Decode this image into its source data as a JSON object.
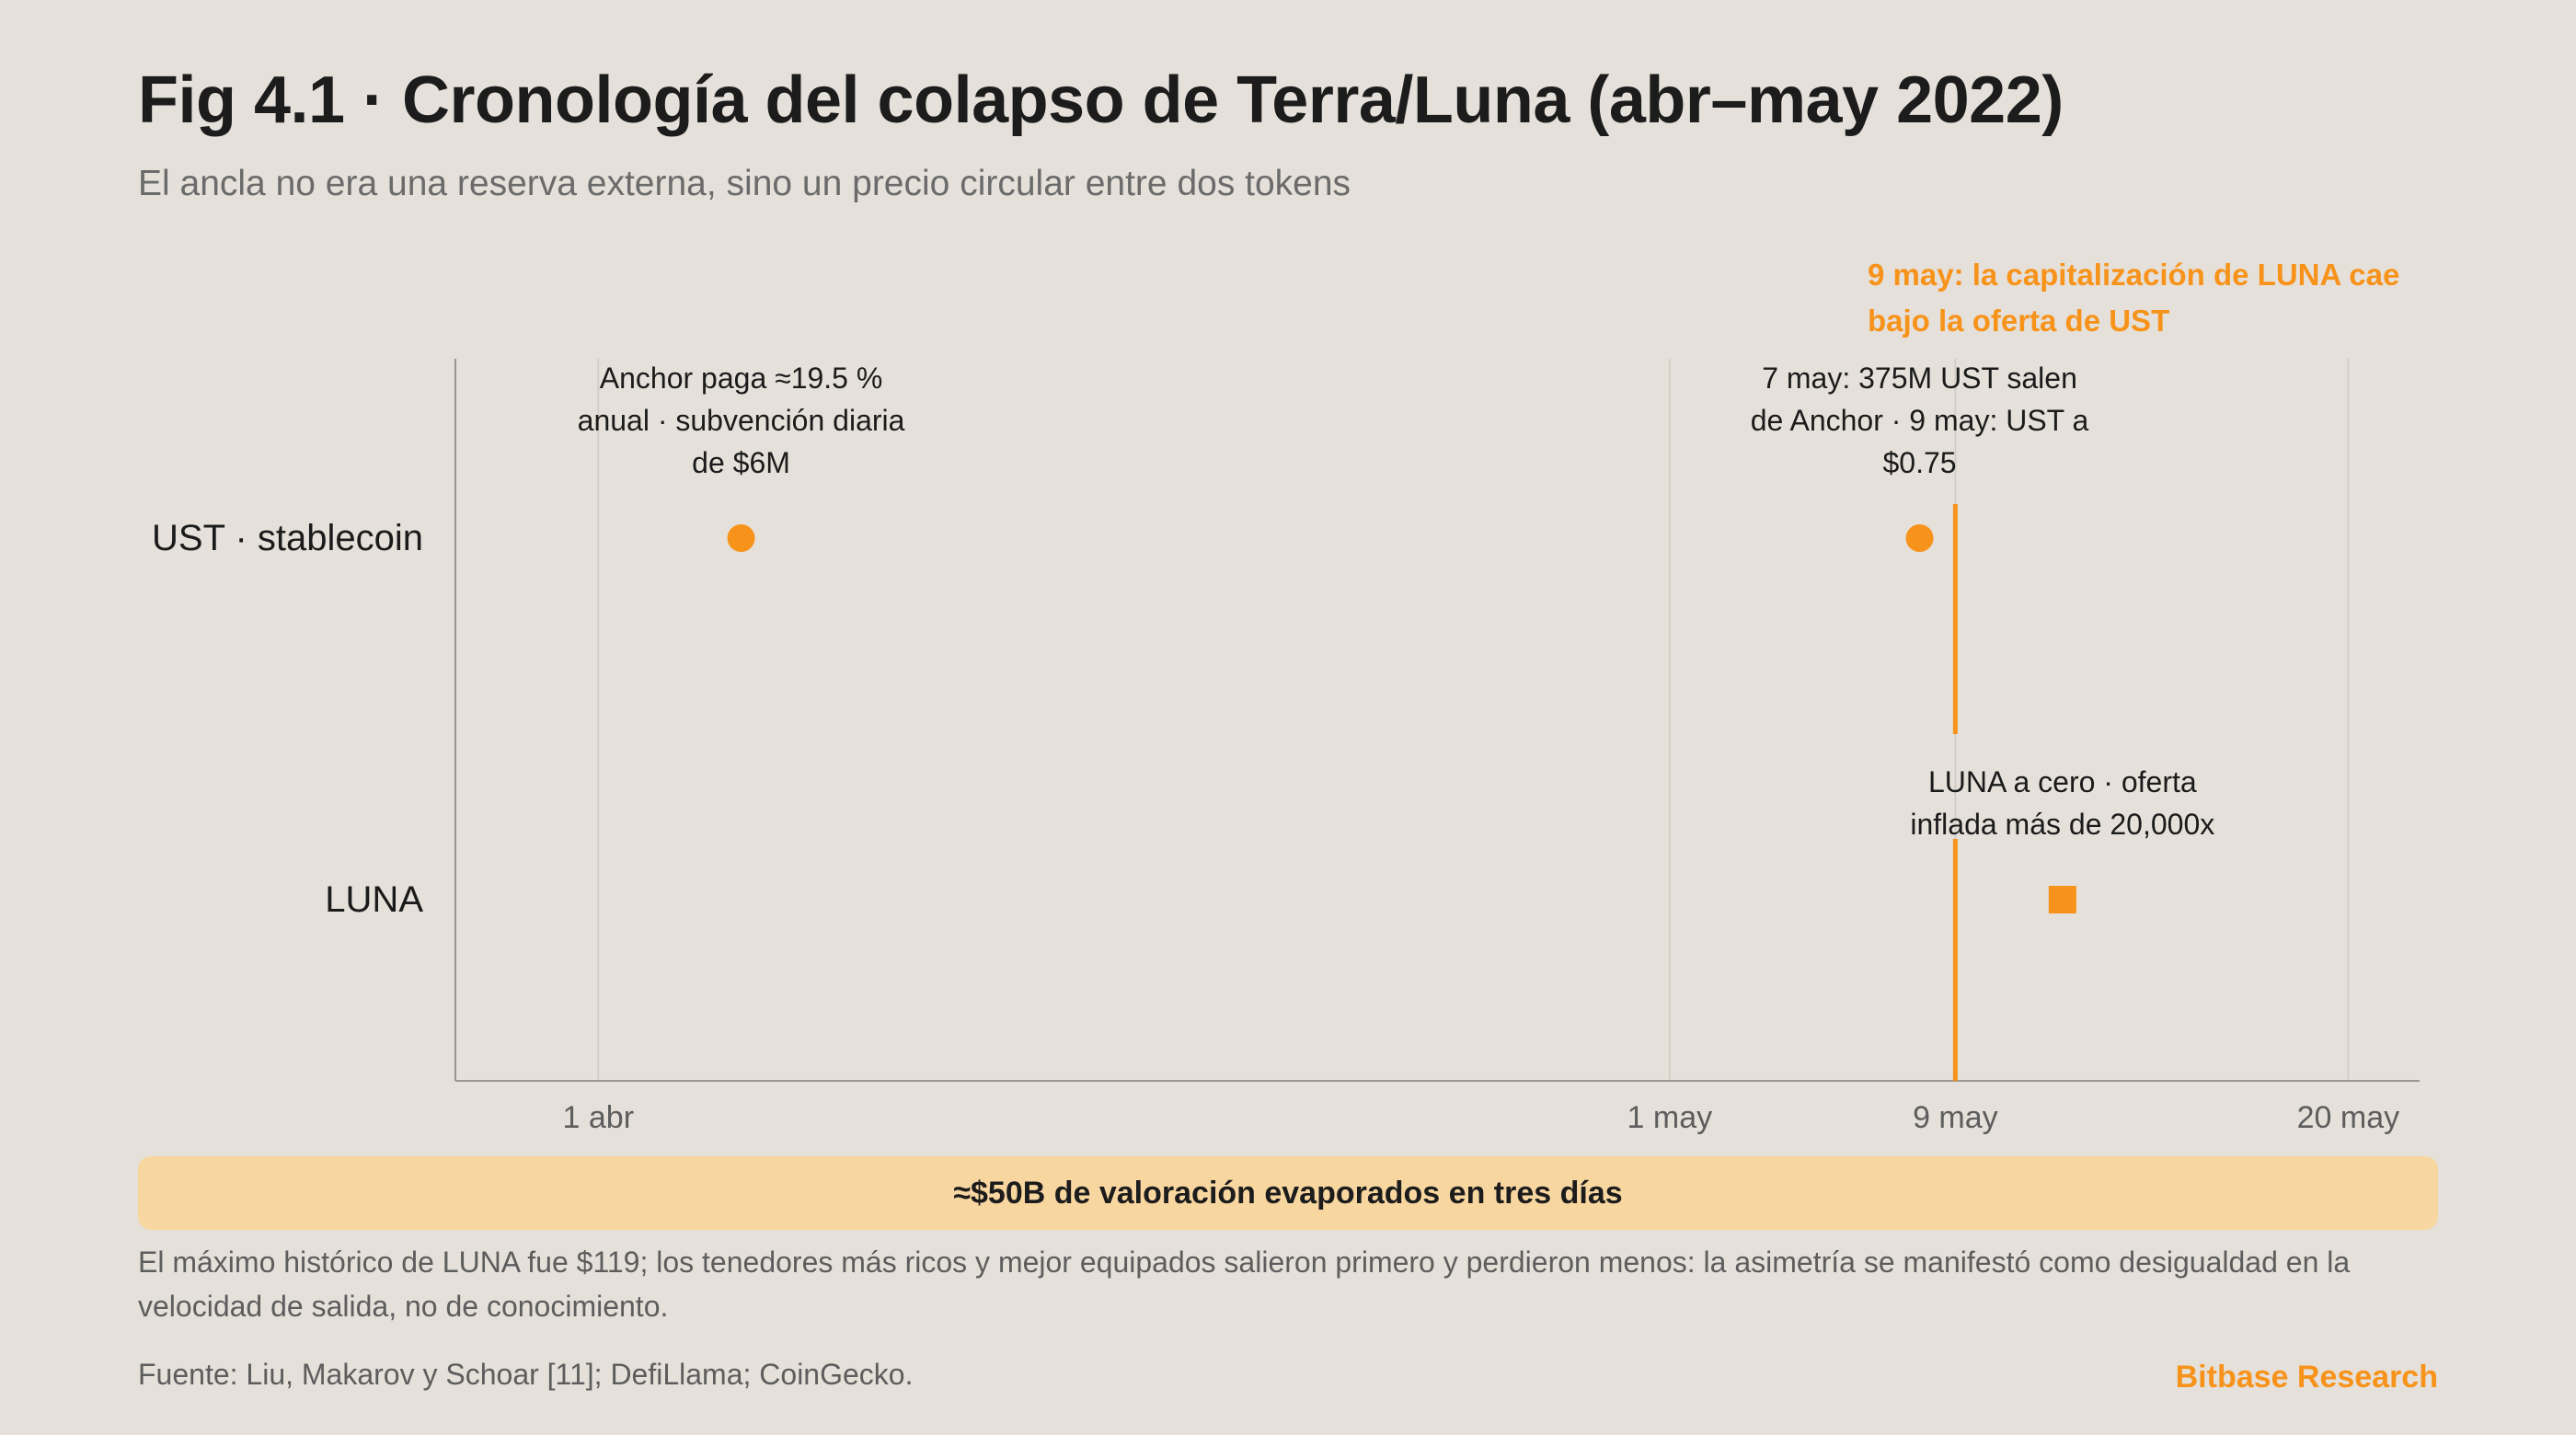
{
  "title": "Fig 4.1 · Cronología del colapso de Terra/Luna (abr–may 2022)",
  "subtitle": "El ancla no era una reserva externa, sino un precio circular entre dos tokens",
  "colors": {
    "accent": "#f7931a",
    "banner_bg": "#f8d6a0",
    "grid": "#d3cec7",
    "axis": "#9a9691",
    "background": "#e5e0da"
  },
  "chart_data": {
    "type": "scatter",
    "title": "Fig 4.1 · Cronología del colapso de Terra/Luna (abr–may 2022)",
    "x_axis": {
      "type": "date",
      "range": [
        "2022-03-28",
        "2022-05-22"
      ],
      "ticks": [
        {
          "date": "2022-04-01",
          "label": "1 abr"
        },
        {
          "date": "2022-05-01",
          "label": "1 may"
        },
        {
          "date": "2022-05-09",
          "label": "9 may"
        },
        {
          "date": "2022-05-20",
          "label": "20 may"
        }
      ],
      "grid": true
    },
    "categories": [
      "UST · stablecoin",
      "LUNA"
    ],
    "events": [
      {
        "category": "UST · stablecoin",
        "date": "2022-04-05",
        "marker": "circle",
        "label_lines": [
          "Anchor paga ≈19.5 %",
          "anual · subvención diaria",
          "de $6M"
        ]
      },
      {
        "category": "UST · stablecoin",
        "date": "2022-05-08",
        "marker": "circle",
        "label_lines": [
          "7 may: 375M UST salen",
          "de Anchor · 9 may: UST a",
          "$0.75"
        ]
      },
      {
        "category": "LUNA",
        "date": "2022-05-12",
        "marker": "square",
        "label_lines": [
          "LUNA a cero · oferta",
          "inflada más de 20,000x"
        ]
      }
    ],
    "reference_line": {
      "date": "2022-05-09",
      "label_lines": [
        "9 may: la capitalización de LUNA cae",
        "bajo la oferta de UST"
      ]
    }
  },
  "banner": "≈$50B de valoración evaporados en tres días",
  "note": "El máximo histórico de LUNA fue $119; los tenedores más ricos y mejor equipados salieron primero y perdieron menos: la asimetría se manifestó como desigualdad en la velocidad de salida, no de conocimiento.",
  "source": "Fuente: Liu, Makarov y Schoar [11]; DefiLlama; CoinGecko.",
  "brand": "Bitbase Research"
}
